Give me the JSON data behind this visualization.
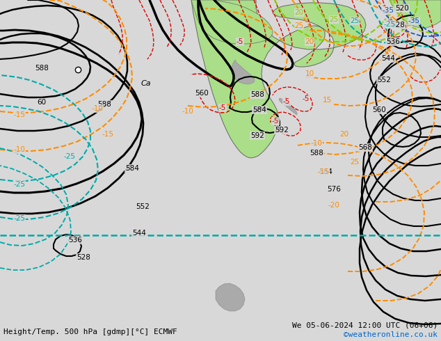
{
  "title_bottom_left": "Height/Temp. 500 hPa [gdmp][°C] ECMWF",
  "title_bottom_right": "We 05-06-2024 12:00 UTC (06+06)",
  "credit": "©weatheronline.co.uk",
  "bg_color": "#d8d8d8",
  "land_color": "#aade88",
  "ocean_color": "#d8d8d8",
  "figsize": [
    6.34,
    4.9
  ],
  "dpi": 100
}
